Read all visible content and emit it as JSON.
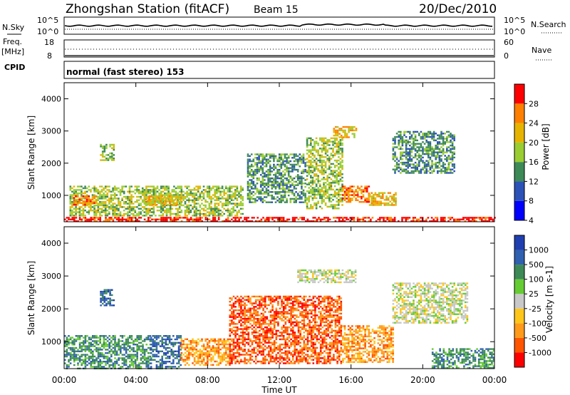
{
  "header": {
    "title": "Zhongshan Station (fitACF)",
    "beam": "Beam 15",
    "date": "20/Dec/2010"
  },
  "top_panels": {
    "nsky_label": "N.Sky",
    "nsky_ticks": [
      "10^5",
      "10^0"
    ],
    "nsearch_label": "N.Search",
    "nsearch_ticks": [
      "10^5",
      "10^0"
    ],
    "freq_label": "Freq.",
    "freq_unit": "[MHz]",
    "freq_ticks": [
      "18",
      "8"
    ],
    "nave_label": "Nave",
    "nave_ticks": [
      "60",
      "0"
    ],
    "cpid_label": "CPID",
    "cpid_text": "normal (fast stereo) 153"
  },
  "chart_data": [
    {
      "type": "heatmap",
      "panel": "power",
      "ylabel": "Slant Range [km]",
      "ylim": [
        180,
        4500
      ],
      "y_ticks": [
        "4000",
        "3000",
        "2000",
        "1000"
      ],
      "x_ticks": [
        "00:00",
        "04:00",
        "08:00",
        "12:00",
        "16:00",
        "20:00",
        "00:00"
      ],
      "xlim_hours": [
        0,
        24
      ],
      "colorbar_label": "Power [dB]",
      "colorbar_ticks": [
        "28",
        "24",
        "20",
        "16",
        "12",
        "8",
        "4"
      ],
      "colorbar_colors": [
        "#0000ff",
        "#2c52b8",
        "#3d8a57",
        "#9acd32",
        "#e6b400",
        "#ff7f00",
        "#ff0000"
      ],
      "regions": [
        {
          "t0": 0.0,
          "t1": 24.0,
          "r0": 180,
          "r1": 330,
          "level": 6
        },
        {
          "t0": 0.3,
          "t1": 10.0,
          "r0": 350,
          "r1": 1300,
          "level": 3
        },
        {
          "t0": 0.5,
          "t1": 1.8,
          "r0": 700,
          "r1": 1000,
          "level": 5
        },
        {
          "t0": 2.0,
          "t1": 2.8,
          "r0": 2100,
          "r1": 2600,
          "level": 3
        },
        {
          "t0": 4.5,
          "t1": 6.5,
          "r0": 700,
          "r1": 1000,
          "level": 4
        },
        {
          "t0": 10.2,
          "t1": 13.5,
          "r0": 800,
          "r1": 2300,
          "level": 2
        },
        {
          "t0": 13.5,
          "t1": 15.5,
          "r0": 600,
          "r1": 2800,
          "level": 3
        },
        {
          "t0": 15.5,
          "t1": 17.0,
          "r0": 800,
          "r1": 1300,
          "level": 5
        },
        {
          "t0": 17.0,
          "t1": 18.5,
          "r0": 700,
          "r1": 1100,
          "level": 4
        },
        {
          "t0": 18.3,
          "t1": 21.8,
          "r0": 1700,
          "r1": 3000,
          "level": 2
        },
        {
          "t0": 15.0,
          "t1": 16.3,
          "r0": 2800,
          "r1": 3150,
          "level": 4
        }
      ]
    },
    {
      "type": "heatmap",
      "panel": "velocity",
      "ylabel": "Slant Range [km]",
      "ylim": [
        180,
        4500
      ],
      "y_ticks": [
        "4000",
        "3000",
        "2000",
        "1000"
      ],
      "x_ticks": [
        "00:00",
        "04:00",
        "08:00",
        "12:00",
        "16:00",
        "20:00",
        "00:00"
      ],
      "xlabel": "Time UT",
      "xlim_hours": [
        0,
        24
      ],
      "colorbar_label": "Velocity [m s-1]",
      "colorbar_ticks": [
        "1000",
        "500",
        "100",
        "25",
        "-25",
        "-100",
        "-500",
        "-1000"
      ],
      "colorbar_colors": [
        "#ff0000",
        "#ff5500",
        "#ff9a1a",
        "#ffc61a",
        "#c8c8c8",
        "#66cc33",
        "#3d8a57",
        "#3060b0",
        "#1f3fb0"
      ],
      "regions": [
        {
          "t0": 0.0,
          "t1": 4.8,
          "r0": 180,
          "r1": 1200,
          "level": 6
        },
        {
          "t0": 2.0,
          "t1": 2.8,
          "r0": 2100,
          "r1": 2600,
          "level": 7
        },
        {
          "t0": 4.8,
          "t1": 6.5,
          "r0": 180,
          "r1": 1200,
          "level": 7
        },
        {
          "t0": 6.5,
          "t1": 9.2,
          "r0": 300,
          "r1": 1100,
          "level": 2
        },
        {
          "t0": 9.2,
          "t1": 15.5,
          "r0": 350,
          "r1": 2400,
          "level": 1
        },
        {
          "t0": 15.5,
          "t1": 18.3,
          "r0": 400,
          "r1": 1500,
          "level": 2
        },
        {
          "t0": 13.0,
          "t1": 16.3,
          "r0": 2800,
          "r1": 3200,
          "level": 4
        },
        {
          "t0": 18.3,
          "t1": 22.5,
          "r0": 1600,
          "r1": 2800,
          "level": 4
        },
        {
          "t0": 20.5,
          "t1": 24.0,
          "r0": 180,
          "r1": 800,
          "level": 6
        }
      ]
    }
  ]
}
